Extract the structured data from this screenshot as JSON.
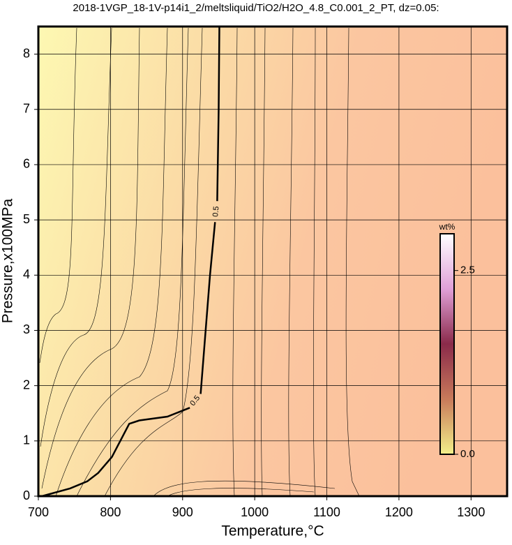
{
  "chart_data": {
    "type": "contour",
    "title": "2018-1VGP_18-1V-p14i1_2/meltsliquid/TiO2/H2O_4.8_C0.001_2_PT, dz=0.05:",
    "x_label": "Temperature,°C",
    "y_label": "Pressure,x100MPa",
    "xlim": [
      700,
      1350
    ],
    "ylim": [
      0,
      8.5
    ],
    "xticks": [
      700,
      800,
      900,
      1000,
      1100,
      1200,
      1300
    ],
    "yticks": [
      0,
      1,
      2,
      3,
      4,
      5,
      6,
      7,
      8
    ],
    "grid": true,
    "series": [
      {
        "name": "0.5",
        "color": "#000000",
        "x": [
          705,
          744,
          768,
          783,
          802,
          826,
          840,
          879,
          910,
          null,
          925,
          938,
          945,
          null,
          948,
          950,
          951
        ],
        "y": [
          0.0,
          0.14,
          0.27,
          0.42,
          0.71,
          1.31,
          1.37,
          1.44,
          1.6,
          null,
          1.85,
          4.0,
          4.96,
          null,
          5.34,
          6.98,
          8.5
        ]
      }
    ],
    "colorbar": {
      "label": "wt%",
      "clim": [
        0,
        3
      ],
      "ticks": [
        {
          "value": 0,
          "label": "0.0"
        },
        2.5
      ],
      "colors": [
        "#f3f08a",
        "#c87a5a",
        "#8a2a4a",
        "#e0a0d8",
        "#ffffff"
      ]
    }
  }
}
